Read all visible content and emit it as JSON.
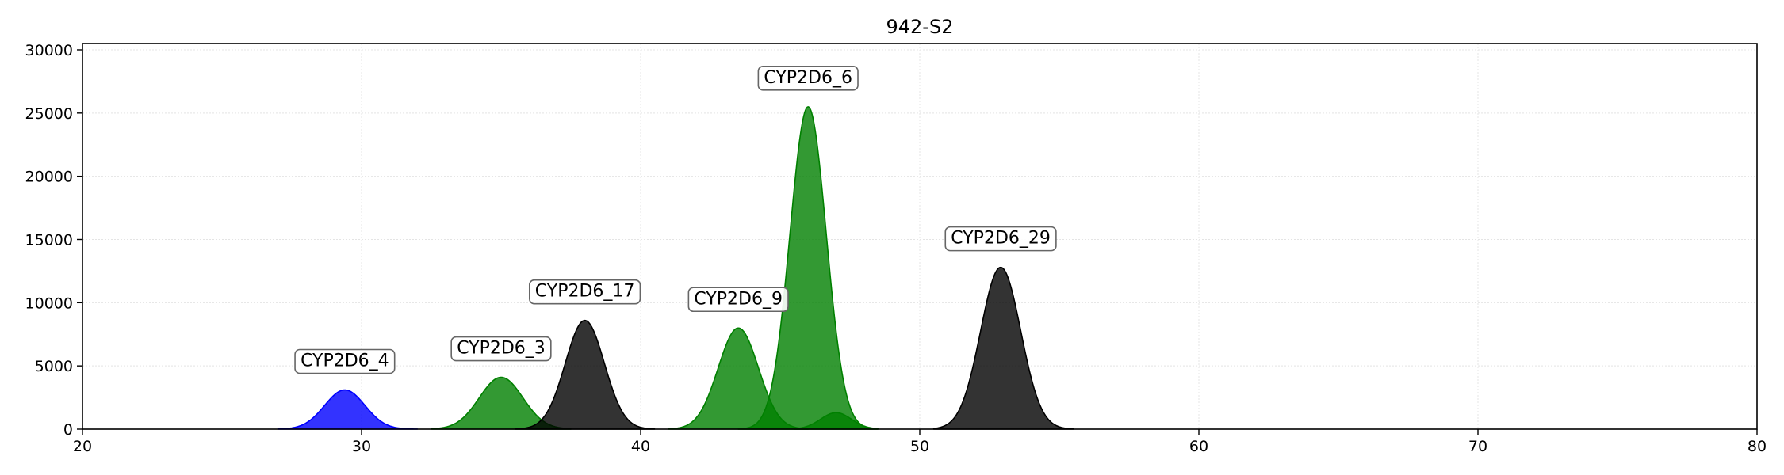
{
  "chart_data": {
    "type": "area",
    "title": "942-S2",
    "xlabel": "",
    "ylabel": "",
    "xlim": [
      20,
      80
    ],
    "ylim": [
      0,
      30500
    ],
    "grid": true,
    "xticks": [
      "20",
      "30",
      "40",
      "50",
      "60",
      "70",
      "80"
    ],
    "yticks": [
      "0",
      "5000",
      "10000",
      "15000",
      "20000",
      "25000",
      "30000"
    ],
    "peaks": [
      {
        "label": "CYP2D6_4",
        "color": "#0000ff",
        "center": 29.4,
        "height": 3100,
        "sigma": 0.72,
        "xmin": 27.0,
        "xmax": 32.0
      },
      {
        "label": "CYP2D6_3",
        "color": "#008000",
        "center": 35.0,
        "height": 4100,
        "sigma": 0.78,
        "xmin": 32.5,
        "xmax": 37.5
      },
      {
        "label": "CYP2D6_17",
        "color": "#000000",
        "center": 38.0,
        "height": 8600,
        "sigma": 0.7,
        "xmin": 35.5,
        "xmax": 40.5
      },
      {
        "label": "CYP2D6_9",
        "color": "#008000",
        "center": 43.5,
        "height": 8000,
        "sigma": 0.72,
        "xmin": 41.0,
        "xmax": 46.0
      },
      {
        "label": "CYP2D6_6",
        "color": "#008000",
        "center": 46.0,
        "height": 25500,
        "sigma": 0.65,
        "xmin": 43.5,
        "xmax": 48.5
      },
      {
        "label": "",
        "color": "#008000",
        "center": 47.0,
        "height": 1300,
        "sigma": 0.55,
        "xmin": 45.5,
        "xmax": 48.5
      },
      {
        "label": "CYP2D6_29",
        "color": "#000000",
        "center": 52.9,
        "height": 12800,
        "sigma": 0.72,
        "xmin": 50.5,
        "xmax": 55.5
      }
    ]
  }
}
